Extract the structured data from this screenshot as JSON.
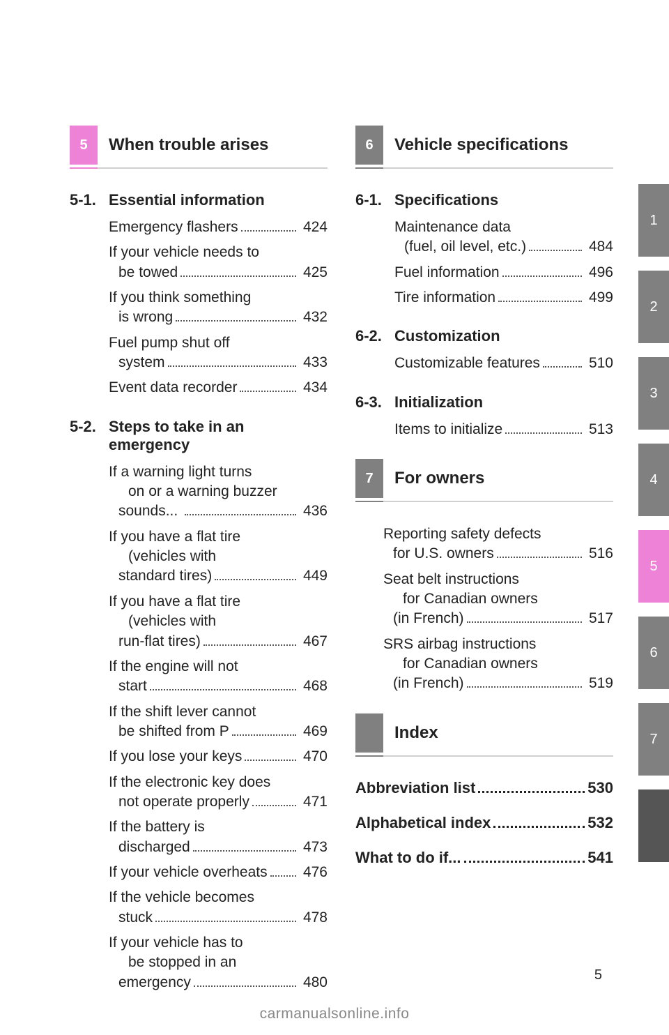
{
  "page_number": "5",
  "watermark": "carmanualsonline.info",
  "colors": {
    "pink": "#ee82d6",
    "gray": "#808080",
    "dark": "#555555",
    "text_muted": "#888888"
  },
  "side_tabs": [
    {
      "label": "1",
      "style": "gray"
    },
    {
      "label": "2",
      "style": "gray"
    },
    {
      "label": "3",
      "style": "gray"
    },
    {
      "label": "4",
      "style": "gray"
    },
    {
      "label": "5",
      "style": "pink"
    },
    {
      "label": "6",
      "style": "gray"
    },
    {
      "label": "7",
      "style": "gray"
    },
    {
      "label": "",
      "style": "dark"
    }
  ],
  "left": {
    "chapter_num": "5",
    "chapter_title": "When trouble arises",
    "style": "pink",
    "sections": [
      {
        "num": "5-1.",
        "title": "Essential information",
        "entries": [
          {
            "lines": [
              "Emergency flashers"
            ],
            "page": "424"
          },
          {
            "lines": [
              "If your vehicle needs to",
              "be towed"
            ],
            "page": "425"
          },
          {
            "lines": [
              "If you think something",
              "is wrong"
            ],
            "page": "432"
          },
          {
            "lines": [
              "Fuel pump shut off",
              "system"
            ],
            "page": "433"
          },
          {
            "lines": [
              "Event data recorder"
            ],
            "page": "434"
          }
        ]
      },
      {
        "num": "5-2.",
        "title": "Steps to take in an emergency",
        "entries": [
          {
            "lines": [
              "If a warning light turns",
              "on or a warning buzzer",
              "sounds... "
            ],
            "page": "436"
          },
          {
            "lines": [
              "If you have a flat tire",
              "(vehicles with",
              "standard tires)"
            ],
            "page": "449"
          },
          {
            "lines": [
              "If you have a flat tire",
              "(vehicles with",
              "run-flat tires)"
            ],
            "page": "467"
          },
          {
            "lines": [
              "If the engine will not",
              "start"
            ],
            "page": "468"
          },
          {
            "lines": [
              "If the shift lever cannot",
              "be shifted from P"
            ],
            "page": "469"
          },
          {
            "lines": [
              "If you lose your keys"
            ],
            "page": "470"
          },
          {
            "lines": [
              "If the electronic key does",
              "not operate properly"
            ],
            "page": "471"
          },
          {
            "lines": [
              "If the battery is",
              "discharged"
            ],
            "page": "473"
          },
          {
            "lines": [
              "If your vehicle overheats"
            ],
            "page": "476"
          },
          {
            "lines": [
              "If the vehicle becomes",
              "stuck"
            ],
            "page": "478"
          },
          {
            "lines": [
              "If your vehicle has to",
              "be stopped in an",
              "emergency"
            ],
            "page": "480"
          }
        ]
      }
    ]
  },
  "right": {
    "blocks": [
      {
        "type": "chapter",
        "chapter_num": "6",
        "chapter_title": "Vehicle specifications",
        "style": "gray",
        "sections": [
          {
            "num": "6-1.",
            "title": "Specifications",
            "entries": [
              {
                "lines": [
                  "Maintenance data",
                  "(fuel, oil level, etc.)"
                ],
                "page": "484"
              },
              {
                "lines": [
                  "Fuel information"
                ],
                "page": "496"
              },
              {
                "lines": [
                  "Tire information"
                ],
                "page": "499"
              }
            ]
          },
          {
            "num": "6-2.",
            "title": "Customization",
            "entries": [
              {
                "lines": [
                  "Customizable features"
                ],
                "page": "510"
              }
            ]
          },
          {
            "num": "6-3.",
            "title": "Initialization",
            "entries": [
              {
                "lines": [
                  "Items to initialize"
                ],
                "page": "513"
              }
            ]
          }
        ]
      },
      {
        "type": "chapter",
        "chapter_num": "7",
        "chapter_title": "For owners",
        "style": "gray",
        "sections": [
          {
            "num": "",
            "title": "",
            "entries": [
              {
                "lines": [
                  "Reporting safety defects",
                  "for U.S. owners"
                ],
                "page": "516"
              },
              {
                "lines": [
                  "Seat belt instructions",
                  "for Canadian owners",
                  "(in French)"
                ],
                "page": "517"
              },
              {
                "lines": [
                  "SRS airbag instructions",
                  "for Canadian owners",
                  "(in French)"
                ],
                "page": "519"
              }
            ]
          }
        ]
      },
      {
        "type": "chapter",
        "chapter_num": "",
        "chapter_title": "Index",
        "style": "gray",
        "sections": []
      }
    ],
    "bold_entries": [
      {
        "label": "Abbreviation list",
        "page": "530"
      },
      {
        "label": "Alphabetical index",
        "page": "532"
      },
      {
        "label": "What to do if... ",
        "page": "541"
      }
    ]
  }
}
